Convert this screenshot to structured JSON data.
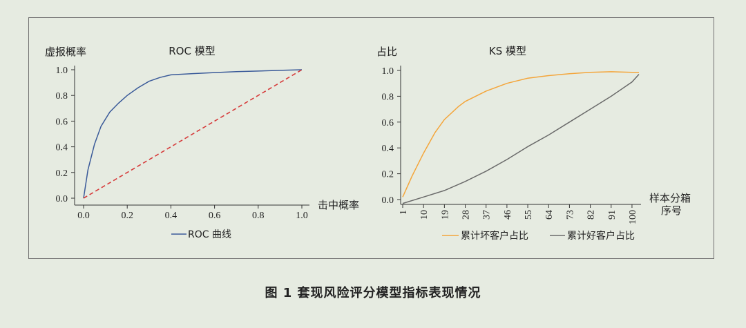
{
  "caption": "图 1  套现风险评分模型指标表现情况",
  "chart_data": [
    {
      "type": "line",
      "title": "ROC 模型",
      "ylabel": "虚报概率",
      "xlabel": "击中概率",
      "xlim": [
        0,
        1
      ],
      "ylim": [
        0,
        1
      ],
      "x_ticks": [
        "0.0",
        "0.2",
        "0.4",
        "0.6",
        "0.8",
        "1.0"
      ],
      "y_ticks": [
        "0.0",
        "0.2",
        "0.4",
        "0.6",
        "0.8",
        "1.0"
      ],
      "legend": "bottom",
      "series": [
        {
          "name": "ROC 曲线",
          "color": "#3a5a99",
          "x": [
            0,
            0.02,
            0.05,
            0.08,
            0.12,
            0.16,
            0.2,
            0.25,
            0.3,
            0.35,
            0.4,
            0.5,
            0.6,
            0.7,
            0.8,
            0.9,
            1.0
          ],
          "y": [
            0,
            0.22,
            0.42,
            0.56,
            0.67,
            0.74,
            0.8,
            0.86,
            0.91,
            0.94,
            0.96,
            0.97,
            0.978,
            0.985,
            0.99,
            0.995,
            1.0
          ]
        },
        {
          "name": "",
          "color": "#d63a3a",
          "style": "dashed",
          "x": [
            0,
            1
          ],
          "y": [
            0,
            1
          ]
        }
      ]
    },
    {
      "type": "line",
      "title": "KS 模型",
      "ylabel": "占比",
      "xlabel": "样本分箱序号",
      "xlabel_lines": [
        "样本分箱",
        "序号"
      ],
      "categories": [
        "1",
        "10",
        "19",
        "28",
        "37",
        "46",
        "55",
        "64",
        "73",
        "82",
        "91",
        "100"
      ],
      "xlim": [
        1,
        103
      ],
      "ylim": [
        0,
        1
      ],
      "y_ticks": [
        "0.0",
        "0.2",
        "0.4",
        "0.6",
        "0.8",
        "1.0"
      ],
      "legend": "bottom",
      "series": [
        {
          "name": "累计坏客户占比",
          "color": "#f4a53a",
          "x": [
            1,
            5,
            10,
            15,
            19,
            25,
            28,
            37,
            46,
            55,
            64,
            73,
            82,
            91,
            100,
            103
          ],
          "y": [
            0.02,
            0.18,
            0.36,
            0.52,
            0.62,
            0.72,
            0.76,
            0.84,
            0.9,
            0.94,
            0.96,
            0.975,
            0.985,
            0.99,
            0.985,
            0.985
          ]
        },
        {
          "name": "累计好客户占比",
          "color": "#6a6a6a",
          "x": [
            1,
            10,
            19,
            28,
            37,
            46,
            55,
            64,
            73,
            82,
            91,
            100,
            103
          ],
          "y": [
            -0.03,
            0.02,
            0.07,
            0.14,
            0.22,
            0.31,
            0.41,
            0.5,
            0.6,
            0.7,
            0.8,
            0.91,
            0.97
          ]
        }
      ]
    }
  ]
}
